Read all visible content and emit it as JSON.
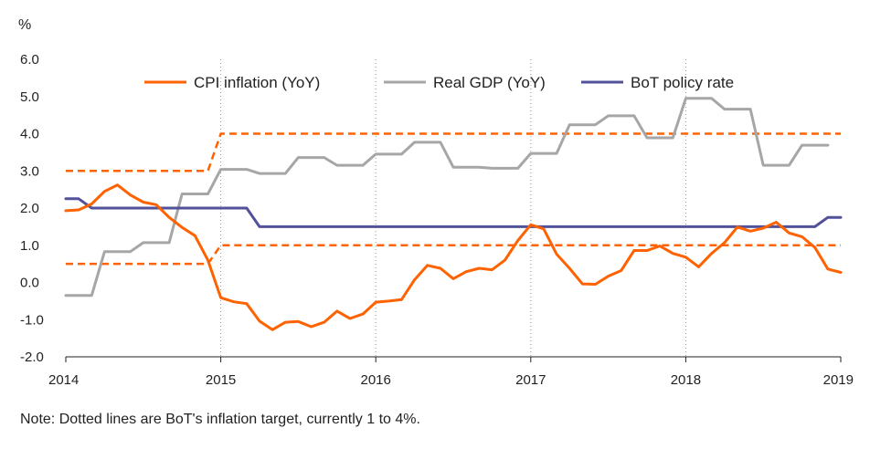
{
  "chart_data": {
    "type": "line",
    "ylabel": "%",
    "ylim": [
      -2.0,
      6.0
    ],
    "xlim": [
      "2014-01",
      "2019-01"
    ],
    "grid": "vertical dotted at year marks",
    "legend": "top-center",
    "y_ticks": [
      "6.0",
      "5.0",
      "4.0",
      "3.0",
      "2.0",
      "1.0",
      "0.0",
      "-1.0",
      "-2.0"
    ],
    "x_ticks": [
      "2014",
      "2015",
      "2016",
      "2017",
      "2018",
      "2019"
    ],
    "note": "Note: Dotted lines are BoT's inflation target, currently 1 to 4%.",
    "colors": {
      "cpi": "#ff6200",
      "gdp": "#a6a6a6",
      "policy": "#525199",
      "target": "#ff6200"
    },
    "series": [
      {
        "name": "CPI inflation (YoY)",
        "key": "cpi",
        "style": "solid",
        "x": [
          "2014-01",
          "2014-02",
          "2014-03",
          "2014-04",
          "2014-05",
          "2014-06",
          "2014-07",
          "2014-08",
          "2014-09",
          "2014-10",
          "2014-11",
          "2014-12",
          "2015-01",
          "2015-02",
          "2015-03",
          "2015-04",
          "2015-05",
          "2015-06",
          "2015-07",
          "2015-08",
          "2015-09",
          "2015-10",
          "2015-11",
          "2015-12",
          "2016-01",
          "2016-02",
          "2016-03",
          "2016-04",
          "2016-05",
          "2016-06",
          "2016-07",
          "2016-08",
          "2016-09",
          "2016-10",
          "2016-11",
          "2016-12",
          "2017-01",
          "2017-02",
          "2017-03",
          "2017-04",
          "2017-05",
          "2017-06",
          "2017-07",
          "2017-08",
          "2017-09",
          "2017-10",
          "2017-11",
          "2017-12",
          "2018-01",
          "2018-02",
          "2018-03",
          "2018-04",
          "2018-05",
          "2018-06",
          "2018-07",
          "2018-08",
          "2018-09",
          "2018-10",
          "2018-11",
          "2018-12",
          "2019-01"
        ],
        "values": [
          1.93,
          1.95,
          2.11,
          2.45,
          2.62,
          2.35,
          2.16,
          2.09,
          1.75,
          1.48,
          1.26,
          0.6,
          -0.41,
          -0.52,
          -0.57,
          -1.04,
          -1.27,
          -1.07,
          -1.05,
          -1.19,
          -1.07,
          -0.77,
          -0.97,
          -0.85,
          -0.53,
          -0.5,
          -0.46,
          0.07,
          0.46,
          0.38,
          0.1,
          0.29,
          0.38,
          0.34,
          0.6,
          1.13,
          1.55,
          1.44,
          0.76,
          0.38,
          -0.04,
          -0.05,
          0.17,
          0.32,
          0.86,
          0.86,
          0.98,
          0.78,
          0.68,
          0.42,
          0.78,
          1.07,
          1.49,
          1.38,
          1.46,
          1.62,
          1.33,
          1.23,
          0.94,
          0.36,
          0.27
        ]
      },
      {
        "name": "Real GDP (YoY)",
        "key": "gdp",
        "style": "step",
        "x": [
          "2014-01",
          "2014-03",
          "2014-04",
          "2014-06",
          "2014-07",
          "2014-09",
          "2014-10",
          "2014-12",
          "2015-01",
          "2015-03",
          "2015-04",
          "2015-06",
          "2015-07",
          "2015-09",
          "2015-10",
          "2015-12",
          "2016-01",
          "2016-03",
          "2016-04",
          "2016-06",
          "2016-07",
          "2016-09",
          "2016-10",
          "2016-12",
          "2017-01",
          "2017-03",
          "2017-04",
          "2017-06",
          "2017-07",
          "2017-09",
          "2017-10",
          "2017-12",
          "2018-01",
          "2018-03",
          "2018-04",
          "2018-06",
          "2018-07",
          "2018-09",
          "2018-10",
          "2018-12"
        ],
        "values": [
          -0.35,
          -0.35,
          0.83,
          0.83,
          1.07,
          1.07,
          2.38,
          2.38,
          3.04,
          3.04,
          2.93,
          2.93,
          3.36,
          3.36,
          3.15,
          3.15,
          3.45,
          3.45,
          3.77,
          3.77,
          3.1,
          3.1,
          3.07,
          3.07,
          3.47,
          3.47,
          4.24,
          4.24,
          4.48,
          4.48,
          3.89,
          3.89,
          4.95,
          4.95,
          4.66,
          4.66,
          3.15,
          3.15,
          3.69,
          3.69
        ]
      },
      {
        "name": "BoT policy rate",
        "key": "policy",
        "style": "solid",
        "x": [
          "2014-01",
          "2014-02",
          "2014-03",
          "2015-03",
          "2015-04",
          "2018-11",
          "2018-12",
          "2019-01"
        ],
        "values": [
          2.25,
          2.25,
          2.0,
          2.0,
          1.5,
          1.5,
          1.75,
          1.75
        ]
      },
      {
        "key": "target_upper",
        "style": "dashed",
        "x": [
          "2014-01",
          "2014-12",
          "2015-01",
          "2019-01"
        ],
        "values": [
          3.0,
          3.0,
          4.0,
          4.0
        ]
      },
      {
        "key": "target_lower",
        "style": "dashed",
        "x": [
          "2014-01",
          "2014-12",
          "2015-01",
          "2019-01"
        ],
        "values": [
          0.5,
          0.5,
          1.0,
          1.0
        ]
      }
    ]
  }
}
